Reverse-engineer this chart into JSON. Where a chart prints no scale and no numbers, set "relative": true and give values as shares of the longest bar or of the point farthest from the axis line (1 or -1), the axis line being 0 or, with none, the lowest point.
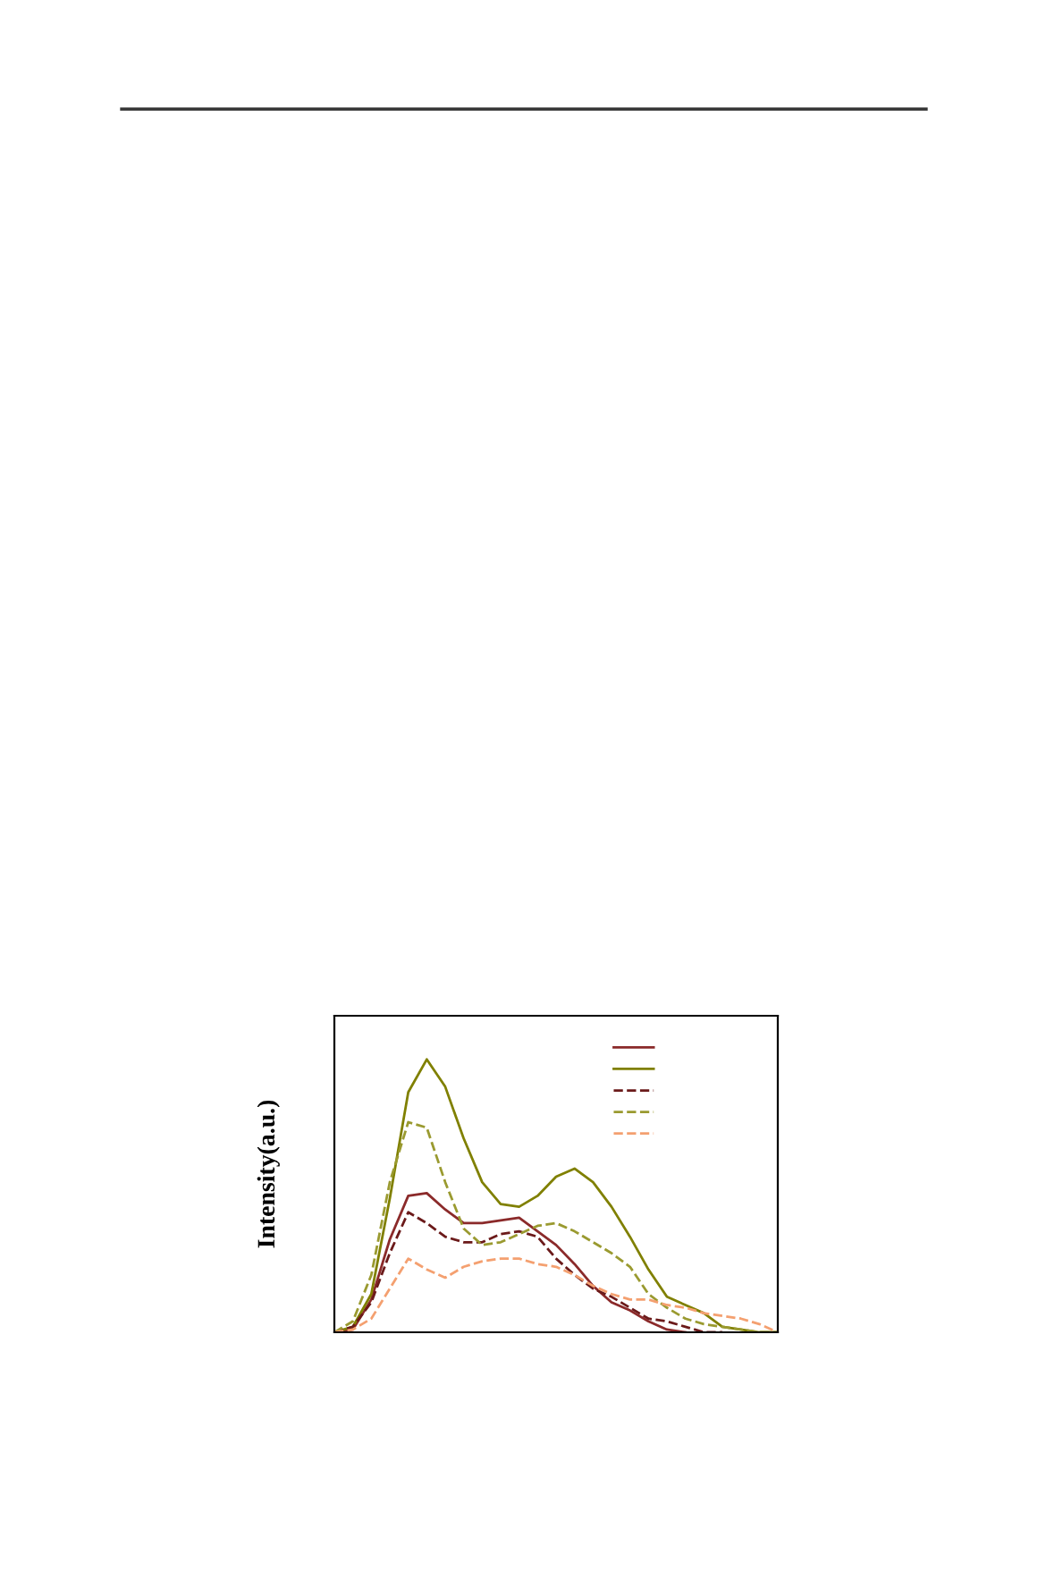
{
  "chart_data": {
    "type": "line",
    "ylabel": "Intensity(a.u.)",
    "relative": true,
    "categories": [
      null,
      null,
      null,
      null,
      null,
      null,
      null,
      null,
      null,
      null,
      null,
      null,
      null,
      null,
      null,
      null,
      null,
      null,
      null,
      null,
      null,
      null,
      null,
      null,
      null
    ],
    "series": [
      {
        "color": "#8b2a2a",
        "line_style": "solid",
        "values": [
          0,
          0.01,
          0.12,
          0.34,
          0.5,
          0.51,
          0.45,
          0.4,
          0.4,
          0.41,
          0.42,
          0.37,
          0.32,
          0.25,
          0.17,
          0.11,
          0.08,
          0.04,
          0.01,
          0,
          null,
          null,
          null,
          null,
          null
        ]
      },
      {
        "color": "#808000",
        "line_style": "solid",
        "values": [
          0,
          0.02,
          0.14,
          0.49,
          0.88,
          1,
          0.9,
          0.71,
          0.55,
          0.47,
          0.46,
          0.5,
          0.57,
          0.6,
          0.55,
          0.46,
          0.35,
          0.23,
          0.13,
          0.1,
          0.07,
          0.02,
          0.01,
          0,
          0
        ]
      },
      {
        "color": "#6b1a1a",
        "line_style": "dashed",
        "values": [
          0,
          0.02,
          0.11,
          0.29,
          0.44,
          0.4,
          0.35,
          0.33,
          0.33,
          0.36,
          0.37,
          0.35,
          0.27,
          0.21,
          0.16,
          0.13,
          0.09,
          0.05,
          0.04,
          0.02,
          0,
          0,
          null,
          null,
          null
        ]
      },
      {
        "color": "#9a9a30",
        "line_style": "dashed",
        "values": [
          0,
          0.04,
          0.21,
          0.55,
          0.77,
          0.75,
          0.55,
          0.38,
          0.32,
          0.33,
          0.36,
          0.39,
          0.4,
          0.37,
          0.33,
          0.29,
          0.24,
          0.14,
          0.09,
          0.05,
          0.03,
          0.02,
          0.01,
          0,
          0
        ]
      },
      {
        "color": "#f4a070",
        "line_style": "dashed",
        "values": [
          0,
          0.01,
          0.05,
          0.16,
          0.27,
          0.23,
          0.2,
          0.24,
          0.26,
          0.27,
          0.27,
          0.25,
          0.24,
          0.21,
          0.17,
          0.14,
          0.12,
          0.12,
          0.1,
          0.09,
          0.07,
          0.06,
          0.05,
          0.03,
          0
        ]
      }
    ]
  }
}
